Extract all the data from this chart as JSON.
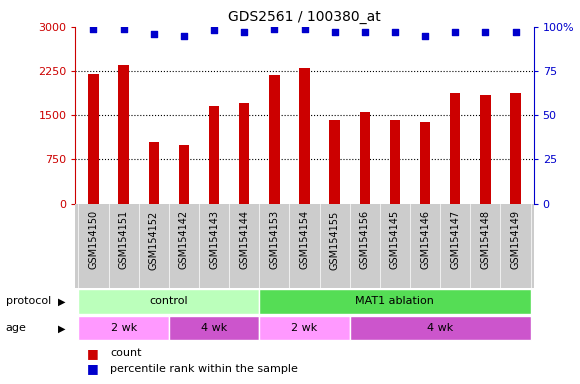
{
  "title": "GDS2561 / 100380_at",
  "samples": [
    "GSM154150",
    "GSM154151",
    "GSM154152",
    "GSM154142",
    "GSM154143",
    "GSM154144",
    "GSM154153",
    "GSM154154",
    "GSM154155",
    "GSM154156",
    "GSM154145",
    "GSM154146",
    "GSM154147",
    "GSM154148",
    "GSM154149"
  ],
  "bar_values": [
    2200,
    2350,
    1050,
    1000,
    1650,
    1700,
    2180,
    2300,
    1420,
    1560,
    1420,
    1380,
    1870,
    1840,
    1870
  ],
  "dot_values": [
    99,
    99,
    96,
    95,
    98,
    97,
    99,
    99,
    97,
    97,
    97,
    95,
    97,
    97,
    97
  ],
  "bar_color": "#cc0000",
  "dot_color": "#0000cc",
  "ylim_left": [
    0,
    3000
  ],
  "ylim_right": [
    0,
    100
  ],
  "yticks_left": [
    0,
    750,
    1500,
    2250,
    3000
  ],
  "yticks_right": [
    0,
    25,
    50,
    75,
    100
  ],
  "protocol_control_color": "#bbffbb",
  "protocol_mat1_color": "#55dd55",
  "age_color_light": "#ff99ff",
  "age_color_dark": "#cc55cc",
  "right_yaxis_color": "#0000cc",
  "left_yaxis_color": "#cc0000",
  "xtick_bg_color": "#cccccc",
  "ctrl_samples": 6,
  "mat1_samples": 9,
  "age_2wk_1": 3,
  "age_4wk_1": 3,
  "age_2wk_2": 3,
  "age_4wk_2": 6
}
